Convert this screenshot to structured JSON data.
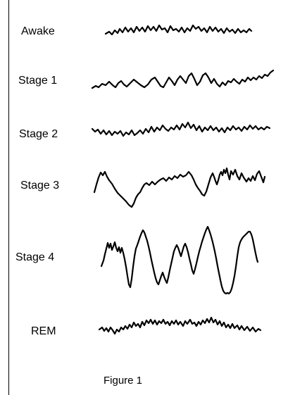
{
  "stages": [
    {
      "key": "awake",
      "label": "Awake"
    },
    {
      "key": "stage1",
      "label": "Stage 1"
    },
    {
      "key": "stage2",
      "label": "Stage 2"
    },
    {
      "key": "stage3",
      "label": "Stage 3"
    },
    {
      "key": "stage4",
      "label": "Stage 4"
    },
    {
      "key": "rem",
      "label": "REM"
    }
  ],
  "caption": "Figure 1",
  "colors": {
    "background": "#ffffff",
    "ink": "#000000"
  }
}
